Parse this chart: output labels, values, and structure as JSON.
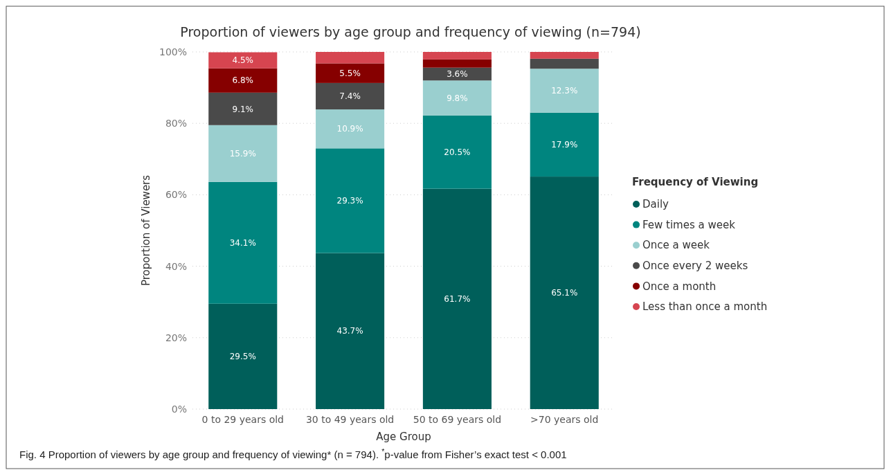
{
  "chart_data": {
    "type": "bar",
    "stacked": true,
    "title": "Proportion of viewers by age group and frequency of viewing (n=794)",
    "xlabel": "Age Group",
    "ylabel": "Proportion of Viewers",
    "legend_title": "Frequency of Viewing",
    "legend": "right",
    "grid": "y",
    "categories": [
      "0 to 29 years old",
      "30 to 49 years old",
      "50 to 69 years old",
      ">70 years old"
    ],
    "ylim": [
      0,
      100
    ],
    "yticks": [
      {
        "value": 0,
        "label": "0%"
      },
      {
        "value": 20,
        "label": "20%"
      },
      {
        "value": 40,
        "label": "40%"
      },
      {
        "value": 60,
        "label": "60%"
      },
      {
        "value": 80,
        "label": "80%"
      },
      {
        "value": 100,
        "label": "100%"
      }
    ],
    "series": [
      {
        "name": "Daily",
        "color": "#005f5a",
        "values": [
          29.5,
          43.7,
          61.7,
          65.1
        ],
        "value_labels": [
          "29.5%",
          "43.7%",
          "61.7%",
          "65.1%"
        ]
      },
      {
        "name": "Few times a week",
        "color": "#00857f",
        "values": [
          34.1,
          29.3,
          20.5,
          17.9
        ],
        "value_labels": [
          "34.1%",
          "29.3%",
          "20.5%",
          "17.9%"
        ]
      },
      {
        "name": "Once a week",
        "color": "#9acfcf",
        "values": [
          15.9,
          10.9,
          9.8,
          12.3
        ],
        "value_labels": [
          "15.9%",
          "10.9%",
          "9.8%",
          "12.3%"
        ]
      },
      {
        "name": "Once every 2 weeks",
        "color": "#4a4a4a",
        "values": [
          9.1,
          7.4,
          3.6,
          2.8
        ],
        "value_labels": [
          "9.1%",
          "7.4%",
          "3.6%",
          null
        ]
      },
      {
        "name": "Once a month",
        "color": "#860000",
        "values": [
          6.8,
          5.5,
          2.3,
          null
        ],
        "value_labels": [
          "6.8%",
          "5.5%",
          null,
          null
        ]
      },
      {
        "name": "Less than once a month",
        "color": "#d64550",
        "values": [
          4.5,
          3.2,
          2.1,
          1.9
        ],
        "value_labels": [
          "4.5%",
          null,
          null,
          null
        ]
      }
    ],
    "annotations": [
      "Fig. 4  Proportion of viewers by age group and frequency of viewing* (n = 794). $^{*}$p-value from Fisher’s exact test < 0.001"
    ]
  }
}
